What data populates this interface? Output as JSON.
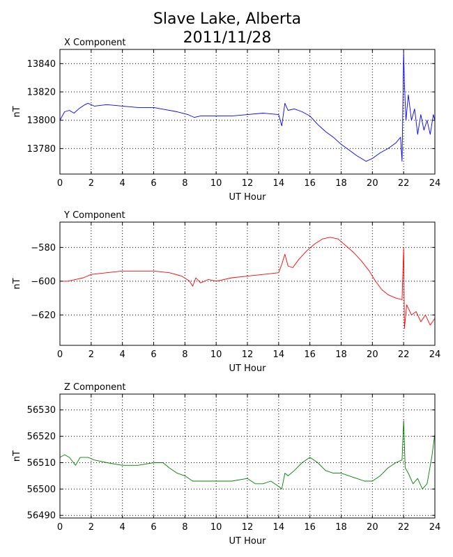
{
  "title_line1": "Slave Lake, Alberta",
  "title_line2": "2011/11/28",
  "chart_data": [
    {
      "type": "line",
      "subtitle": "X Component",
      "xlabel": "UT Hour",
      "ylabel": "nT",
      "xlim": [
        0,
        24
      ],
      "ylim": [
        13762,
        13850
      ],
      "xticks": [
        0,
        2,
        4,
        6,
        8,
        10,
        12,
        14,
        16,
        18,
        20,
        22,
        24
      ],
      "yticks": [
        13780,
        13800,
        13820,
        13840
      ],
      "color": "#0000ff",
      "series": [
        {
          "x": [
            0,
            0.3,
            0.6,
            0.9,
            1.2,
            1.6,
            1.8,
            2.2,
            3,
            4,
            5,
            6,
            6.5,
            7.5,
            8.2,
            8.6,
            9,
            10,
            11,
            12,
            13,
            14,
            14.2,
            14.4,
            14.6,
            15,
            15.5,
            16,
            16.5,
            17,
            17.5,
            18,
            18.5,
            19,
            19.3,
            19.6,
            20,
            20.5,
            21,
            21.5,
            21.8,
            21.9,
            22,
            22.05,
            22.15,
            22.3,
            22.5,
            22.7,
            22.9,
            23.1,
            23.3,
            23.5,
            23.7,
            23.9,
            24
          ],
          "y": [
            13800,
            13806,
            13807,
            13805,
            13808,
            13811,
            13812,
            13810,
            13811,
            13810,
            13809,
            13809,
            13808,
            13806,
            13804,
            13802,
            13803,
            13803,
            13803,
            13804,
            13805,
            13804,
            13796,
            13812,
            13807,
            13808,
            13806,
            13803,
            13797,
            13792,
            13788,
            13783,
            13779,
            13775,
            13773,
            13771,
            13773,
            13777,
            13780,
            13784,
            13788,
            13771,
            13848,
            13826,
            13800,
            13818,
            13800,
            13808,
            13790,
            13804,
            13793,
            13800,
            13790,
            13804,
            13800
          ]
        }
      ]
    },
    {
      "type": "line",
      "subtitle": "Y Component",
      "xlabel": "UT Hour",
      "ylabel": "nT",
      "xlim": [
        0,
        24
      ],
      "ylim": [
        -638,
        -565
      ],
      "xticks": [
        0,
        2,
        4,
        6,
        8,
        10,
        12,
        14,
        16,
        18,
        20,
        22,
        24
      ],
      "yticks": [
        -580,
        -600,
        -620
      ],
      "color": "#ff0000",
      "series": [
        {
          "x": [
            0,
            0.5,
            1,
            1.5,
            2,
            3,
            4,
            5,
            6,
            7,
            7.8,
            8.3,
            8.5,
            8.7,
            9,
            9.5,
            10,
            11,
            12,
            13,
            14,
            14.2,
            14.4,
            14.6,
            14.9,
            15.3,
            15.8,
            16.3,
            16.8,
            17.3,
            17.8,
            18.3,
            18.8,
            19.3,
            19.8,
            20.2,
            20.6,
            21,
            21.5,
            21.9,
            22,
            22.05,
            22.2,
            22.5,
            22.8,
            23.1,
            23.4,
            23.7,
            24
          ],
          "y": [
            -600,
            -600,
            -599,
            -598,
            -596,
            -595,
            -594,
            -594,
            -594,
            -595,
            -597,
            -600,
            -603,
            -598,
            -601,
            -599,
            -600,
            -598,
            -597,
            -596,
            -595,
            -590,
            -584,
            -591,
            -592,
            -587,
            -582,
            -578,
            -575,
            -574,
            -575,
            -579,
            -583,
            -588,
            -594,
            -600,
            -605,
            -608,
            -610,
            -611,
            -580,
            -628,
            -614,
            -620,
            -618,
            -624,
            -620,
            -626,
            -622
          ]
        }
      ]
    },
    {
      "type": "line",
      "subtitle": "Z Component",
      "xlabel": "UT Hour",
      "ylabel": "nT",
      "xlim": [
        0,
        24
      ],
      "ylim": [
        56489,
        56536
      ],
      "xticks": [
        0,
        2,
        4,
        6,
        8,
        10,
        12,
        14,
        16,
        18,
        20,
        22,
        24
      ],
      "yticks": [
        56490,
        56500,
        56510,
        56520,
        56530
      ],
      "color": "#008000",
      "series": [
        {
          "x": [
            0,
            0.3,
            0.6,
            1,
            1.3,
            1.8,
            2.2,
            3,
            4,
            5,
            6,
            6.6,
            7,
            7.5,
            8,
            8.5,
            9,
            10,
            11,
            12,
            12.5,
            13,
            13.5,
            14,
            14.2,
            14.4,
            14.6,
            15,
            15.5,
            16,
            16.5,
            17,
            17.5,
            18,
            18.5,
            19,
            19.5,
            20,
            20.5,
            21,
            21.5,
            21.9,
            22,
            22.1,
            22.3,
            22.6,
            22.9,
            23.2,
            23.5,
            23.8,
            24
          ],
          "y": [
            56512,
            56513,
            56512,
            56509,
            56512,
            56512,
            56511,
            56510,
            56509,
            56509,
            56510,
            56510,
            56508,
            56506,
            56505,
            56503,
            56503,
            56503,
            56503,
            56504,
            56502,
            56502,
            56503,
            56501,
            56500,
            56506,
            56505,
            56507,
            56510,
            56512,
            56510,
            56507,
            56506,
            56506,
            56505,
            56504,
            56503,
            56503,
            56505,
            56508,
            56510,
            56511,
            56526,
            56508,
            56506,
            56502,
            56504,
            56500,
            56502,
            56512,
            56521
          ]
        }
      ]
    }
  ]
}
